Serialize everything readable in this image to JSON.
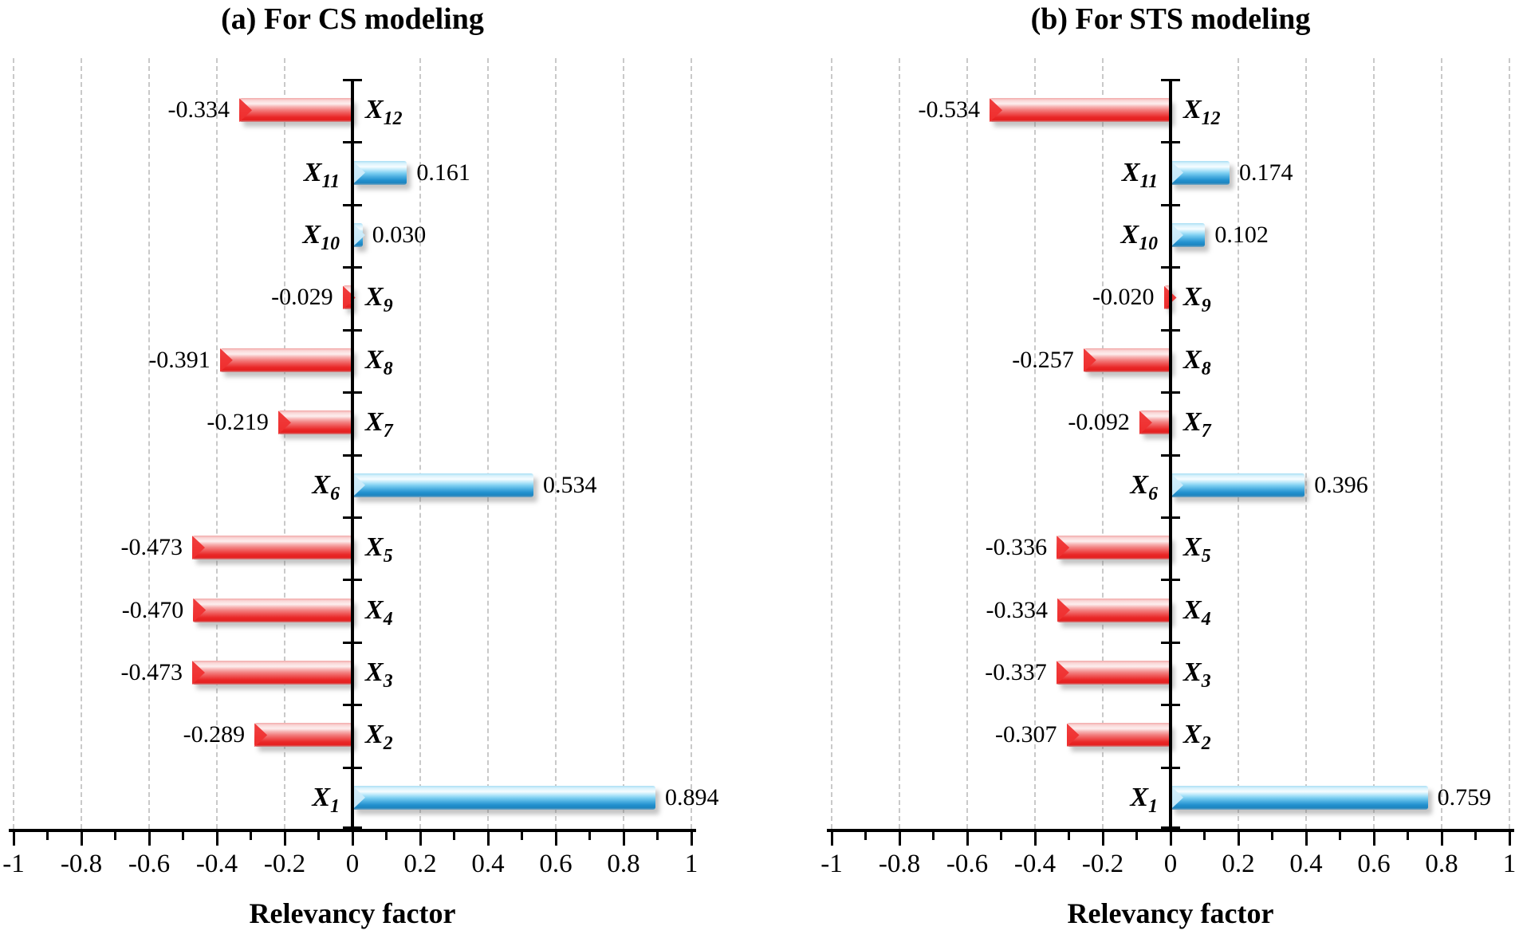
{
  "colors": {
    "positive_bar": "#2391cf",
    "negative_bar": "#e92727",
    "gridline": "#c9c9c9",
    "axis": "#000000",
    "background": "#ffffff"
  },
  "x_axis": {
    "min": -1,
    "max": 1,
    "major_ticks": [
      {
        "value": -1,
        "label": "-1"
      },
      {
        "value": -0.8,
        "label": "-0.8"
      },
      {
        "value": -0.6,
        "label": "-0.6"
      },
      {
        "value": -0.4,
        "label": "-0.4"
      },
      {
        "value": -0.2,
        "label": "-0.2"
      },
      {
        "value": 0,
        "label": "0"
      },
      {
        "value": 0.2,
        "label": "0.2"
      },
      {
        "value": 0.4,
        "label": "0.4"
      },
      {
        "value": 0.6,
        "label": "0.6"
      },
      {
        "value": 0.8,
        "label": "0.8"
      },
      {
        "value": 1,
        "label": "1"
      }
    ],
    "minor_tick_values": [
      -0.9,
      -0.7,
      -0.5,
      -0.3,
      -0.1,
      0.1,
      0.3,
      0.5,
      0.7,
      0.9
    ],
    "gridline_values": [
      -1,
      -0.8,
      -0.6,
      -0.4,
      -0.2,
      0.2,
      0.4,
      0.6,
      0.8,
      1
    ]
  },
  "chart_data": [
    {
      "type": "bar",
      "orientation": "horizontal",
      "title": "(a) For CS modeling",
      "xlabel": "Relevancy factor",
      "xlim": [
        -1,
        1
      ],
      "grid": "vertical dashed at 0.2 steps",
      "legend": "none",
      "bars": [
        {
          "base": "X",
          "sub": "12",
          "value": -0.334,
          "label": "-0.334"
        },
        {
          "base": "X",
          "sub": "11",
          "value": 0.161,
          "label": "0.161"
        },
        {
          "base": "X",
          "sub": "10",
          "value": 0.03,
          "label": "0.030"
        },
        {
          "base": "X",
          "sub": "9",
          "value": -0.029,
          "label": "-0.029"
        },
        {
          "base": "X",
          "sub": "8",
          "value": -0.391,
          "label": "-0.391"
        },
        {
          "base": "X",
          "sub": "7",
          "value": -0.219,
          "label": "-0.219"
        },
        {
          "base": "X",
          "sub": "6",
          "value": 0.534,
          "label": "0.534"
        },
        {
          "base": "X",
          "sub": "5",
          "value": -0.473,
          "label": "-0.473"
        },
        {
          "base": "X",
          "sub": "4",
          "value": -0.47,
          "label": "-0.470"
        },
        {
          "base": "X",
          "sub": "3",
          "value": -0.473,
          "label": "-0.473"
        },
        {
          "base": "X",
          "sub": "2",
          "value": -0.289,
          "label": "-0.289"
        },
        {
          "base": "X",
          "sub": "1",
          "value": 0.894,
          "label": "0.894"
        }
      ]
    },
    {
      "type": "bar",
      "orientation": "horizontal",
      "title": "(b) For STS modeling",
      "xlabel": "Relevancy factor",
      "xlim": [
        -1,
        1
      ],
      "grid": "vertical dashed at 0.2 steps",
      "legend": "none",
      "bars": [
        {
          "base": "X",
          "sub": "12",
          "value": -0.534,
          "label": "-0.534"
        },
        {
          "base": "X",
          "sub": "11",
          "value": 0.174,
          "label": "0.174"
        },
        {
          "base": "X",
          "sub": "10",
          "value": 0.102,
          "label": "0.102"
        },
        {
          "base": "X",
          "sub": "9",
          "value": -0.02,
          "label": "-0.020"
        },
        {
          "base": "X",
          "sub": "8",
          "value": -0.257,
          "label": "-0.257"
        },
        {
          "base": "X",
          "sub": "7",
          "value": -0.092,
          "label": "-0.092"
        },
        {
          "base": "X",
          "sub": "6",
          "value": 0.396,
          "label": "0.396"
        },
        {
          "base": "X",
          "sub": "5",
          "value": -0.336,
          "label": "-0.336"
        },
        {
          "base": "X",
          "sub": "4",
          "value": -0.334,
          "label": "-0.334"
        },
        {
          "base": "X",
          "sub": "3",
          "value": -0.337,
          "label": "-0.337"
        },
        {
          "base": "X",
          "sub": "2",
          "value": -0.307,
          "label": "-0.307"
        },
        {
          "base": "X",
          "sub": "1",
          "value": 0.759,
          "label": "0.759"
        }
      ]
    }
  ]
}
